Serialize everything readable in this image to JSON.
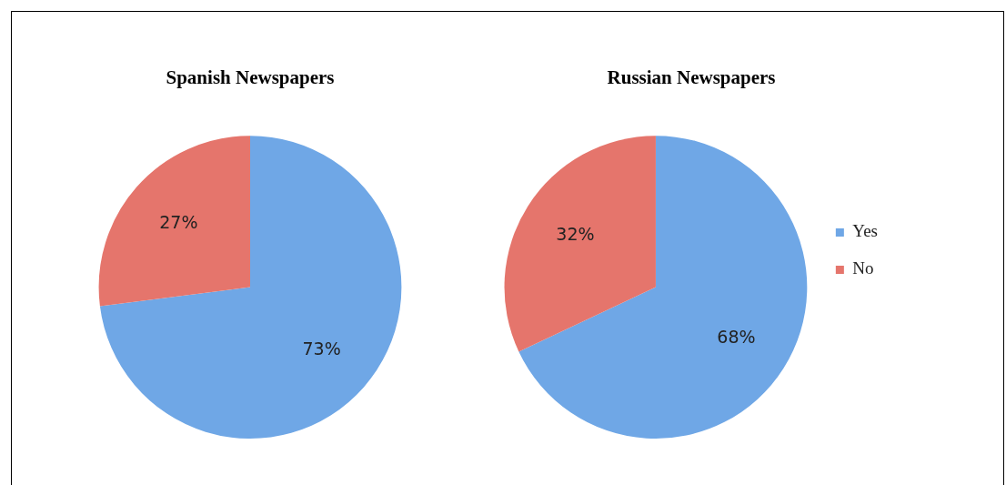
{
  "chart_data": [
    {
      "type": "pie",
      "title": "Spanish Newspapers",
      "categories": [
        null,
        null
      ],
      "values": [
        73,
        27
      ],
      "colors": [
        "#6fa7e6",
        "#e5756c"
      ],
      "value_labels": [
        "73%",
        "27%"
      ],
      "legend": false
    },
    {
      "type": "pie",
      "title": "Russian Newspapers",
      "categories": [
        "Yes",
        "No"
      ],
      "values": [
        68,
        32
      ],
      "colors": [
        "#6fa7e6",
        "#e5756c"
      ],
      "value_labels": [
        "68%",
        "32%"
      ],
      "legend": "right"
    }
  ]
}
